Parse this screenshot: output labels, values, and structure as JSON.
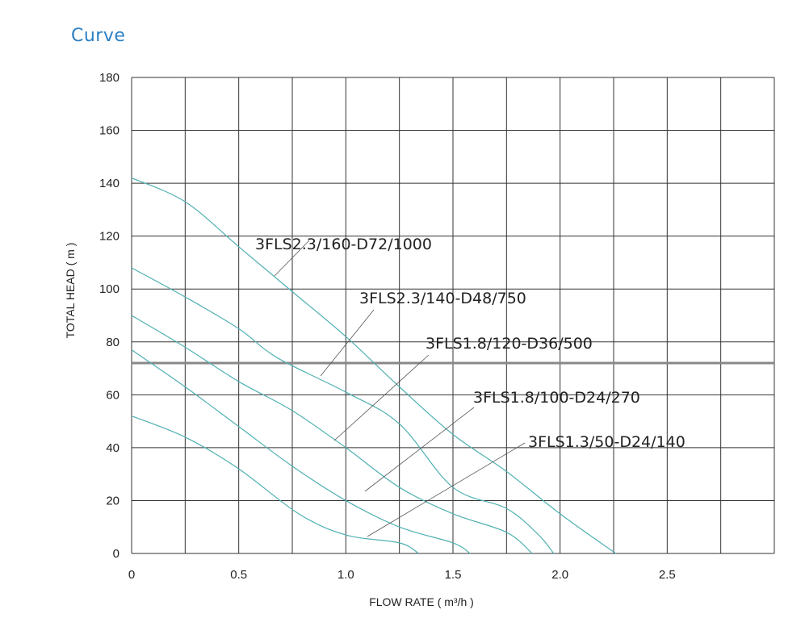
{
  "page": {
    "title": "Curve"
  },
  "chart_data": {
    "type": "line",
    "title": "",
    "xlabel": "FLOW RATE ( m³/h )",
    "ylabel": "TOTAL HEAD ( m )",
    "xlim": [
      0,
      3.0
    ],
    "ylim": [
      0,
      180
    ],
    "x_ticks": [
      "0",
      "0.5",
      "1.0",
      "1.5",
      "2.0",
      "2.5"
    ],
    "y_ticks": [
      "0",
      "20",
      "40",
      "60",
      "80",
      "100",
      "120",
      "140",
      "160",
      "180"
    ],
    "grid": true,
    "colors": {
      "curve": "#4fb0b2",
      "grid": "#333333",
      "leader": "#555555",
      "title": "#2a7fc4"
    },
    "series": [
      {
        "name": "3FLS2.3/160-D72/1000",
        "x": [
          0,
          0.25,
          0.5,
          0.75,
          1.0,
          1.25,
          1.5,
          1.75,
          2.0,
          2.26
        ],
        "y": [
          142,
          133,
          116,
          99,
          82,
          63,
          45,
          31,
          15,
          0
        ]
      },
      {
        "name": "3FLS2.3/140-D48/750",
        "x": [
          0,
          0.25,
          0.5,
          0.68,
          1.0,
          1.25,
          1.5,
          1.75,
          1.9,
          1.97
        ],
        "y": [
          108,
          97,
          85,
          74,
          61,
          49,
          25,
          17,
          7,
          0
        ]
      },
      {
        "name": "3FLS1.8/120-D36/500",
        "x": [
          0,
          0.25,
          0.5,
          0.75,
          1.0,
          1.25,
          1.5,
          1.75,
          1.87
        ],
        "y": [
          90,
          78,
          65,
          54,
          40,
          25,
          15,
          8,
          0
        ]
      },
      {
        "name": "3FLS1.8/100-D24/270",
        "x": [
          0,
          0.25,
          0.5,
          0.75,
          1.0,
          1.25,
          1.5,
          1.58
        ],
        "y": [
          77,
          63,
          48,
          33,
          20,
          10,
          4,
          0
        ]
      },
      {
        "name": "3FLS1.3/50-D24/140",
        "x": [
          0,
          0.25,
          0.5,
          0.78,
          1.0,
          1.25,
          1.34
        ],
        "y": [
          52,
          44,
          32,
          15,
          7,
          4,
          0
        ]
      }
    ]
  }
}
